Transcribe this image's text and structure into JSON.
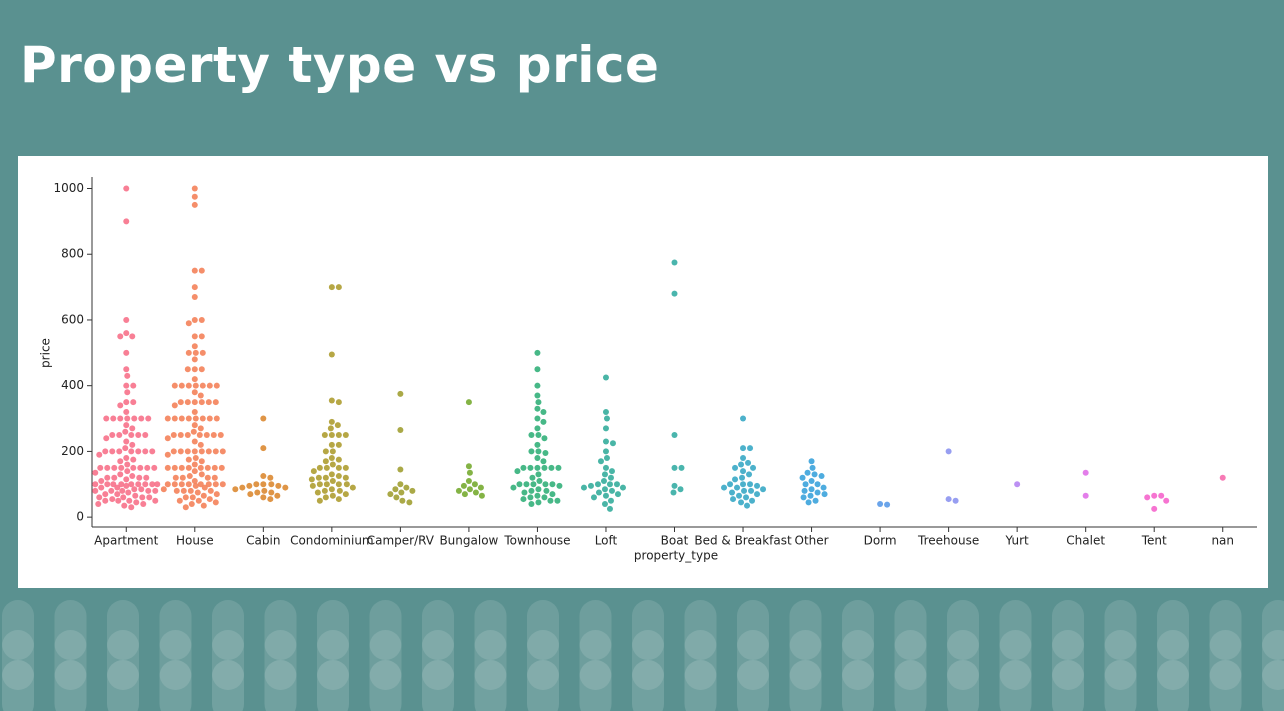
{
  "chart_data": {
    "type": "swarm",
    "title": "Property type vs price",
    "x_label": "property_type",
    "y_label": "price",
    "categories": [
      "Apartment",
      "House",
      "Cabin",
      "Condominium",
      "Camper/RV",
      "Bungalow",
      "Townhouse",
      "Loft",
      "Boat",
      "Bed & Breakfast",
      "Other",
      "Dorm",
      "Treehouse",
      "Yurt",
      "Chalet",
      "Tent",
      "nan"
    ],
    "colors": [
      "#f77189",
      "#f4825a",
      "#dc8932",
      "#ae9d31",
      "#a1a033",
      "#77ab31",
      "#33b07a",
      "#35ad9c",
      "#36ada4",
      "#38a9c5",
      "#3ba3dc",
      "#5a9ae8",
      "#8c94f0",
      "#b584f2",
      "#e070e8",
      "#f565cc",
      "#f66bad"
    ],
    "values": [
      [
        1000,
        900,
        600,
        560,
        550,
        550,
        500,
        450,
        430,
        400,
        400,
        380,
        350,
        350,
        340,
        320,
        300,
        300,
        300,
        300,
        300,
        300,
        300,
        280,
        270,
        260,
        250,
        250,
        250,
        250,
        250,
        240,
        230,
        220,
        210,
        200,
        200,
        200,
        200,
        200,
        200,
        200,
        190,
        180,
        175,
        170,
        160,
        150,
        150,
        150,
        150,
        150,
        150,
        150,
        150,
        140,
        135,
        130,
        125,
        120,
        120,
        120,
        120,
        115,
        110,
        100,
        100,
        100,
        100,
        100,
        100,
        100,
        100,
        100,
        95,
        90,
        90,
        85,
        85,
        80,
        80,
        80,
        80,
        80,
        75,
        70,
        70,
        65,
        60,
        60,
        60,
        60,
        55,
        50,
        50,
        50,
        50,
        45,
        40,
        40,
        35,
        30
      ],
      [
        1000,
        975,
        950,
        750,
        750,
        700,
        670,
        600,
        600,
        590,
        550,
        550,
        520,
        500,
        500,
        500,
        480,
        450,
        450,
        450,
        420,
        400,
        400,
        400,
        400,
        400,
        400,
        400,
        380,
        370,
        350,
        350,
        350,
        350,
        350,
        350,
        340,
        320,
        300,
        300,
        300,
        300,
        300,
        300,
        300,
        300,
        280,
        270,
        260,
        250,
        250,
        250,
        250,
        250,
        250,
        250,
        240,
        230,
        220,
        200,
        200,
        200,
        200,
        200,
        200,
        200,
        200,
        190,
        180,
        175,
        170,
        160,
        150,
        150,
        150,
        150,
        150,
        150,
        150,
        150,
        140,
        130,
        125,
        120,
        120,
        120,
        120,
        110,
        100,
        100,
        100,
        100,
        100,
        100,
        100,
        100,
        95,
        90,
        85,
        80,
        80,
        80,
        80,
        75,
        70,
        65,
        60,
        60,
        55,
        50,
        50,
        45,
        40,
        35,
        30
      ],
      [
        300,
        210,
        125,
        120,
        100,
        100,
        100,
        95,
        95,
        90,
        90,
        85,
        80,
        75,
        75,
        70,
        65,
        60,
        55
      ],
      [
        700,
        700,
        495,
        355,
        350,
        290,
        280,
        270,
        250,
        250,
        250,
        250,
        220,
        220,
        200,
        200,
        180,
        175,
        170,
        160,
        150,
        150,
        150,
        150,
        140,
        130,
        125,
        120,
        120,
        120,
        115,
        110,
        100,
        100,
        100,
        100,
        95,
        90,
        85,
        80,
        80,
        75,
        70,
        65,
        60,
        55,
        50
      ],
      [
        375,
        265,
        145,
        100,
        90,
        85,
        80,
        75,
        70,
        60,
        50,
        45
      ],
      [
        350,
        155,
        135,
        110,
        100,
        95,
        90,
        85,
        80,
        75,
        70,
        65
      ],
      [
        500,
        450,
        400,
        370,
        350,
        330,
        320,
        300,
        290,
        270,
        250,
        250,
        240,
        220,
        200,
        200,
        195,
        180,
        170,
        150,
        150,
        150,
        150,
        150,
        150,
        140,
        130,
        120,
        110,
        100,
        100,
        100,
        100,
        100,
        95,
        90,
        85,
        80,
        80,
        75,
        70,
        65,
        60,
        60,
        55,
        50,
        50,
        45,
        40
      ],
      [
        425,
        320,
        300,
        270,
        230,
        225,
        200,
        180,
        170,
        150,
        140,
        130,
        120,
        110,
        100,
        100,
        100,
        95,
        90,
        90,
        85,
        80,
        75,
        70,
        65,
        60,
        50,
        40,
        25
      ],
      [
        775,
        680,
        250,
        150,
        150,
        95,
        85,
        75
      ],
      [
        300,
        210,
        210,
        180,
        165,
        160,
        150,
        150,
        140,
        130,
        120,
        115,
        100,
        100,
        100,
        95,
        90,
        90,
        85,
        80,
        80,
        75,
        70,
        65,
        60,
        55,
        50,
        45,
        35
      ],
      [
        170,
        150,
        135,
        130,
        125,
        120,
        110,
        100,
        100,
        90,
        85,
        80,
        75,
        70,
        65,
        60,
        50,
        45
      ],
      [
        40,
        38
      ],
      [
        200,
        55,
        50
      ],
      [
        100
      ],
      [
        135,
        65
      ],
      [
        65,
        65,
        60,
        50,
        25
      ],
      [
        120
      ]
    ],
    "ylim": [
      -30,
      1035
    ],
    "yticks": [
      0,
      200,
      400,
      600,
      800,
      1000
    ]
  }
}
